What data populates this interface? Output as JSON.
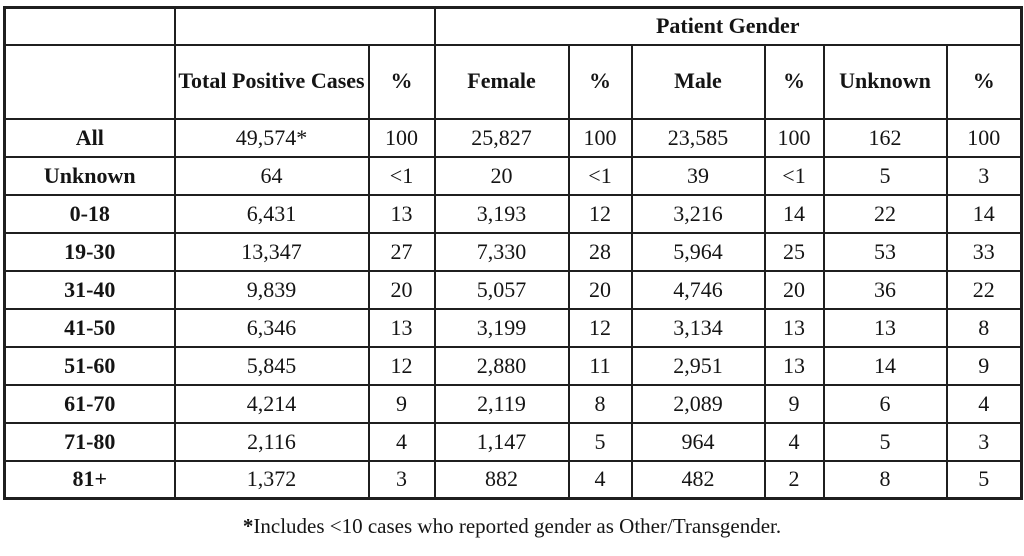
{
  "table": {
    "group_header": "Patient Gender",
    "col_headers": [
      "",
      "Total Positive Cases",
      "%",
      "Female",
      "%",
      "Male",
      "%",
      "Unknown",
      "%"
    ],
    "rows": [
      {
        "label": "All",
        "cells": [
          "49,574*",
          "100",
          "25,827",
          "100",
          "23,585",
          "100",
          "162",
          "100"
        ]
      },
      {
        "label": "Unknown",
        "cells": [
          "64",
          "<1",
          "20",
          "<1",
          "39",
          "<1",
          "5",
          "3"
        ]
      },
      {
        "label": "0-18",
        "cells": [
          "6,431",
          "13",
          "3,193",
          "12",
          "3,216",
          "14",
          "22",
          "14"
        ]
      },
      {
        "label": "19-30",
        "cells": [
          "13,347",
          "27",
          "7,330",
          "28",
          "5,964",
          "25",
          "53",
          "33"
        ]
      },
      {
        "label": "31-40",
        "cells": [
          "9,839",
          "20",
          "5,057",
          "20",
          "4,746",
          "20",
          "36",
          "22"
        ]
      },
      {
        "label": "41-50",
        "cells": [
          "6,346",
          "13",
          "3,199",
          "12",
          "3,134",
          "13",
          "13",
          "8"
        ]
      },
      {
        "label": "51-60",
        "cells": [
          "5,845",
          "12",
          "2,880",
          "11",
          "2,951",
          "13",
          "14",
          "9"
        ]
      },
      {
        "label": "61-70",
        "cells": [
          "4,214",
          "9",
          "2,119",
          "8",
          "2,089",
          "9",
          "6",
          "4"
        ]
      },
      {
        "label": "71-80",
        "cells": [
          "2,116",
          "4",
          "1,147",
          "5",
          "964",
          "4",
          "5",
          "3"
        ]
      },
      {
        "label": "81+",
        "cells": [
          "1,372",
          "3",
          "882",
          "4",
          "482",
          "2",
          "8",
          "5"
        ]
      }
    ],
    "footnote_marker": "*",
    "footnote_text": "Includes <10 cases who reported gender as Other/Transgender."
  },
  "colors": {
    "border": "#1f1f1f",
    "text": "#141414",
    "background": "#ffffff"
  }
}
